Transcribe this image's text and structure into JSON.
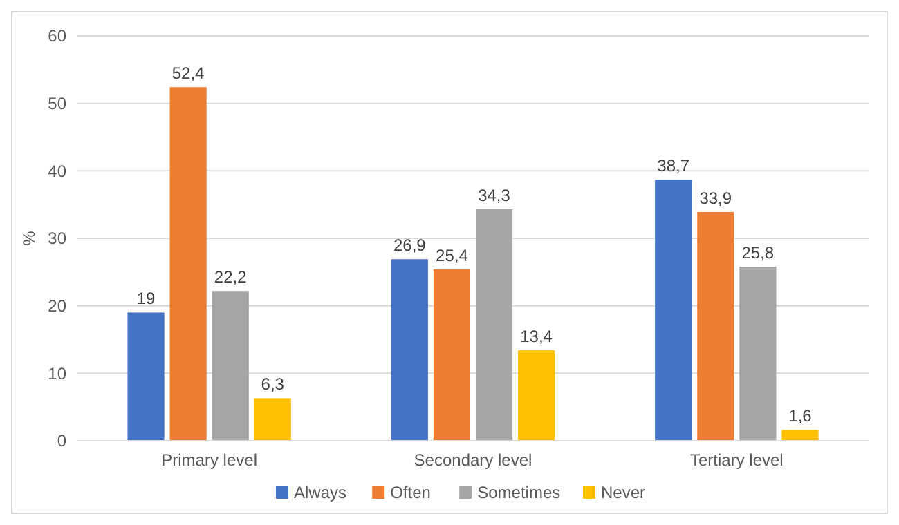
{
  "chart_data": {
    "type": "bar",
    "ylabel": "%",
    "categories": [
      "Primary level",
      "Secondary level",
      "Tertiary level"
    ],
    "series": [
      {
        "name": "Always",
        "color": "#4472c4",
        "values": [
          19,
          26.9,
          38.7
        ],
        "value_labels": [
          "19",
          "26,9",
          "38,7"
        ]
      },
      {
        "name": "Often",
        "color": "#ed7d31",
        "values": [
          52.4,
          25.4,
          33.9
        ],
        "value_labels": [
          "52,4",
          "25,4",
          "33,9"
        ]
      },
      {
        "name": "Sometimes",
        "color": "#a5a5a5",
        "values": [
          22.2,
          34.3,
          25.8
        ],
        "value_labels": [
          "22,2",
          "34,3",
          "25,8"
        ]
      },
      {
        "name": "Never",
        "color": "#ffc000",
        "values": [
          6.3,
          13.4,
          1.6
        ],
        "value_labels": [
          "6,3",
          "13,4",
          "1,6"
        ]
      }
    ],
    "ylim": [
      0,
      60
    ],
    "yticks": [
      0,
      10,
      20,
      30,
      40,
      50,
      60
    ],
    "grid": "y",
    "legend": "bottom"
  }
}
